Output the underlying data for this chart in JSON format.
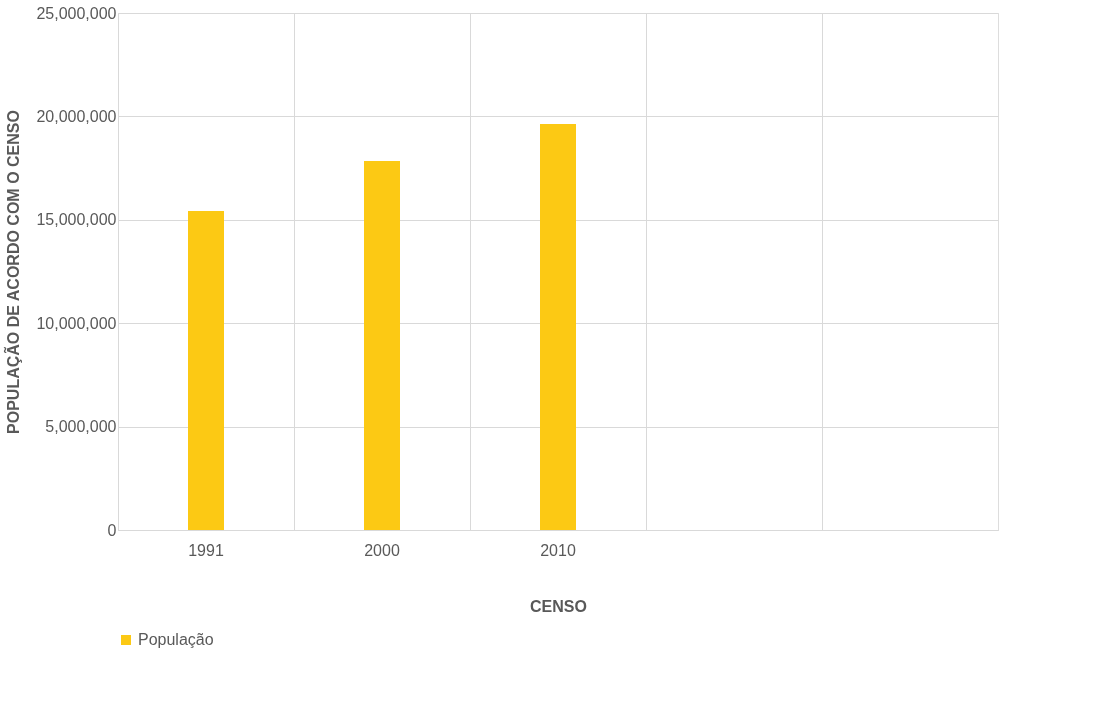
{
  "chart_data": {
    "type": "bar",
    "xlabel": "CENSO",
    "ylabel": "POPULAÇÃO DE ACORDO COM O CENSO",
    "categories": [
      "1991",
      "2000",
      "2010",
      null,
      null
    ],
    "series": [
      {
        "name": "População",
        "color": "#fcc914",
        "values": [
          15430000,
          17840000,
          19630000,
          null,
          null
        ]
      }
    ],
    "ylim": [
      0,
      25000000
    ],
    "yticks": [
      0,
      {
        "value": 5000000,
        "label": "5,000,000"
      },
      {
        "value": 10000000,
        "label": "10,000,000"
      },
      {
        "value": 15000000,
        "label": "15,000,000"
      },
      {
        "value": 20000000,
        "label": "20,000,000"
      },
      {
        "value": 25000000,
        "label": "25,000,000"
      }
    ],
    "grid": true,
    "legend": "bottom"
  }
}
